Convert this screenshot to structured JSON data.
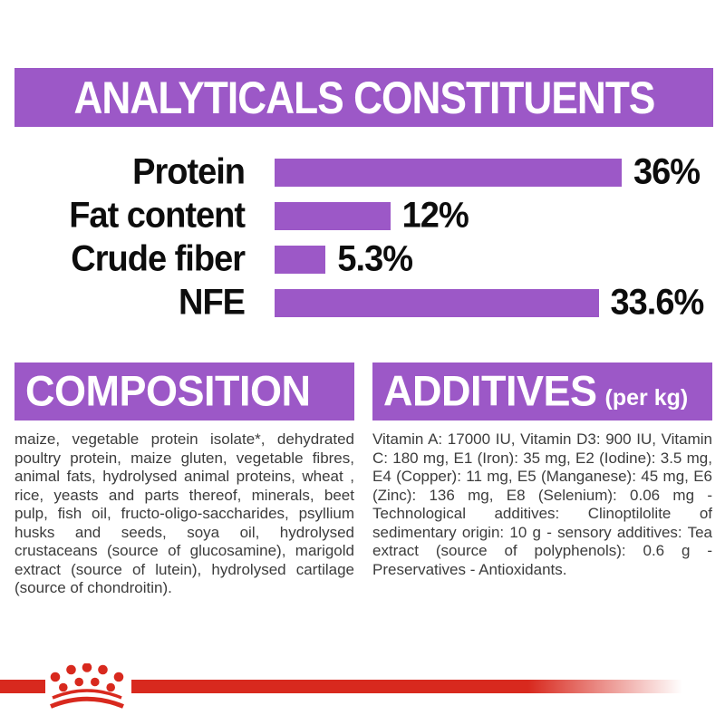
{
  "analyticals": {
    "title": "ANALYTICALS CONSTITUENTS"
  },
  "chart_data": {
    "type": "bar",
    "orientation": "horizontal",
    "title": "ANALYTICALS CONSTITUENTS",
    "categories": [
      "Protein",
      "Fat content",
      "Crude fiber",
      "NFE"
    ],
    "values": [
      36,
      12,
      5.3,
      33.6
    ],
    "value_labels": [
      "36%",
      "12%",
      "5.3%",
      "33.6%"
    ],
    "unit": "%",
    "xlim": [
      0,
      36
    ],
    "bar_color": "#9c58c7",
    "grid": false,
    "legend": false
  },
  "composition": {
    "title": "COMPOSITION",
    "body": "maize, vegetable protein isolate*, dehydrated poultry protein, maize gluten, vegetable fibres, animal fats, hydrolysed animal proteins, wheat , rice, yeasts and parts thereof, minerals, beet pulp, fish oil, fructo-oligo-saccharides, psyllium husks and seeds, soya oil, hydrolysed crustaceans (source of glucosamine), marigold extract (source of lutein), hydrolysed cartilage (source of chondroitin)."
  },
  "additives": {
    "title": "ADDITIVES",
    "unit_suffix": "(per kg)",
    "body": "Vitamin A: 17000 IU, Vitamin D3: 900 IU, Vitamin C: 180 mg, E1 (Iron): 35 mg, E2 (Iodine): 3.5 mg, E4 (Copper): 11 mg, E5 (Manganese): 45 mg, E6 (Zinc): 136 mg, E8 (Selenium): 0.06 mg - Technological additives: Clinoptilolite of sedimentary origin: 10 g - sensory additives: Tea extract (source of polyphenols): 0.6 g - Preservatives - Antioxidants."
  },
  "footer": {
    "logo": "royal-canin-crown"
  },
  "colors": {
    "purple": "#9c58c7",
    "red": "#d8291e",
    "body_text": "#3c3c3c",
    "heading_text": "#ffffff",
    "chart_text": "#0d0d0d",
    "background": "#ffffff"
  }
}
